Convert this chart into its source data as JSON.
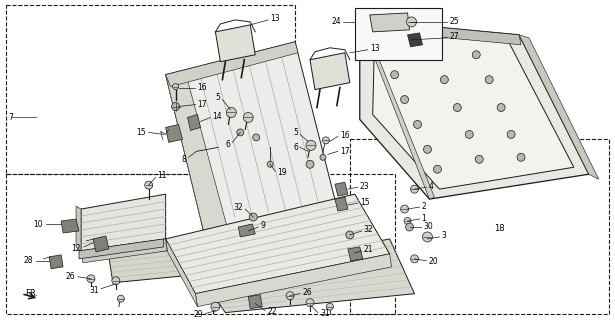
{
  "bg_color": "#ffffff",
  "line_color": "#1a1a1a",
  "fill_light": "#f0f0ec",
  "fill_mid": "#e0e0d8",
  "fill_dark": "#c8c8c0",
  "stripe_color": "#b0b0a8",
  "fig_width": 6.15,
  "fig_height": 3.2,
  "dpi": 100
}
